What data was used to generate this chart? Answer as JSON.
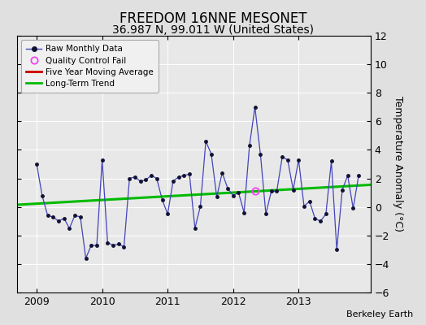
{
  "title": "FREEDOM 16NNE MESONET",
  "subtitle": "36.987 N, 99.011 W (United States)",
  "watermark": "Berkeley Earth",
  "ylabel": "Temperature Anomaly (°C)",
  "ylim": [
    -6,
    12
  ],
  "yticks": [
    -6,
    -4,
    -2,
    0,
    2,
    4,
    6,
    8,
    10,
    12
  ],
  "xlim": [
    2008.7,
    2014.1
  ],
  "xticks": [
    2009,
    2010,
    2011,
    2012,
    2013
  ],
  "bg_color": "#e0e0e0",
  "plot_bg_color": "#e8e8e8",
  "raw_x": [
    2009.0,
    2009.083,
    2009.167,
    2009.25,
    2009.333,
    2009.417,
    2009.5,
    2009.583,
    2009.667,
    2009.75,
    2009.833,
    2009.917,
    2010.0,
    2010.083,
    2010.167,
    2010.25,
    2010.333,
    2010.417,
    2010.5,
    2010.583,
    2010.667,
    2010.75,
    2010.833,
    2010.917,
    2011.0,
    2011.083,
    2011.167,
    2011.25,
    2011.333,
    2011.417,
    2011.5,
    2011.583,
    2011.667,
    2011.75,
    2011.833,
    2011.917,
    2012.0,
    2012.083,
    2012.167,
    2012.25,
    2012.333,
    2012.417,
    2012.5,
    2012.583,
    2012.667,
    2012.75,
    2012.833,
    2012.917,
    2013.0,
    2013.083,
    2013.167,
    2013.25,
    2013.333,
    2013.417,
    2013.5,
    2013.583,
    2013.667,
    2013.75,
    2013.833,
    2013.917
  ],
  "raw_y": [
    3.0,
    0.8,
    -0.6,
    -0.7,
    -1.0,
    -0.8,
    -1.5,
    -0.6,
    -0.7,
    -3.6,
    -2.7,
    -2.7,
    3.3,
    -2.5,
    -2.7,
    -2.6,
    -2.8,
    2.0,
    2.1,
    1.8,
    1.9,
    2.2,
    2.0,
    0.5,
    -0.5,
    1.8,
    2.1,
    2.2,
    2.3,
    -1.5,
    0.05,
    4.6,
    3.7,
    0.7,
    2.4,
    1.3,
    0.8,
    1.0,
    -0.4,
    4.3,
    7.0,
    3.7,
    -0.5,
    1.1,
    1.1,
    3.5,
    3.3,
    1.2,
    3.3,
    0.05,
    0.4,
    -0.8,
    -1.0,
    -0.5,
    3.2,
    -3.0,
    1.2,
    2.2,
    -0.1,
    2.2
  ],
  "qc_fail_x": [
    2012.333
  ],
  "qc_fail_y": [
    1.1
  ],
  "trend_x": [
    2008.7,
    2014.1
  ],
  "trend_y": [
    0.15,
    1.55
  ],
  "raw_line_color": "#4444bb",
  "marker_color": "#111133",
  "qc_color": "#ee44ee",
  "trend_color": "#00bb00",
  "moving_avg_color": "#cc0000",
  "legend_bg": "#f0f0f0",
  "title_fontsize": 12,
  "subtitle_fontsize": 10,
  "label_fontsize": 9,
  "tick_fontsize": 9
}
